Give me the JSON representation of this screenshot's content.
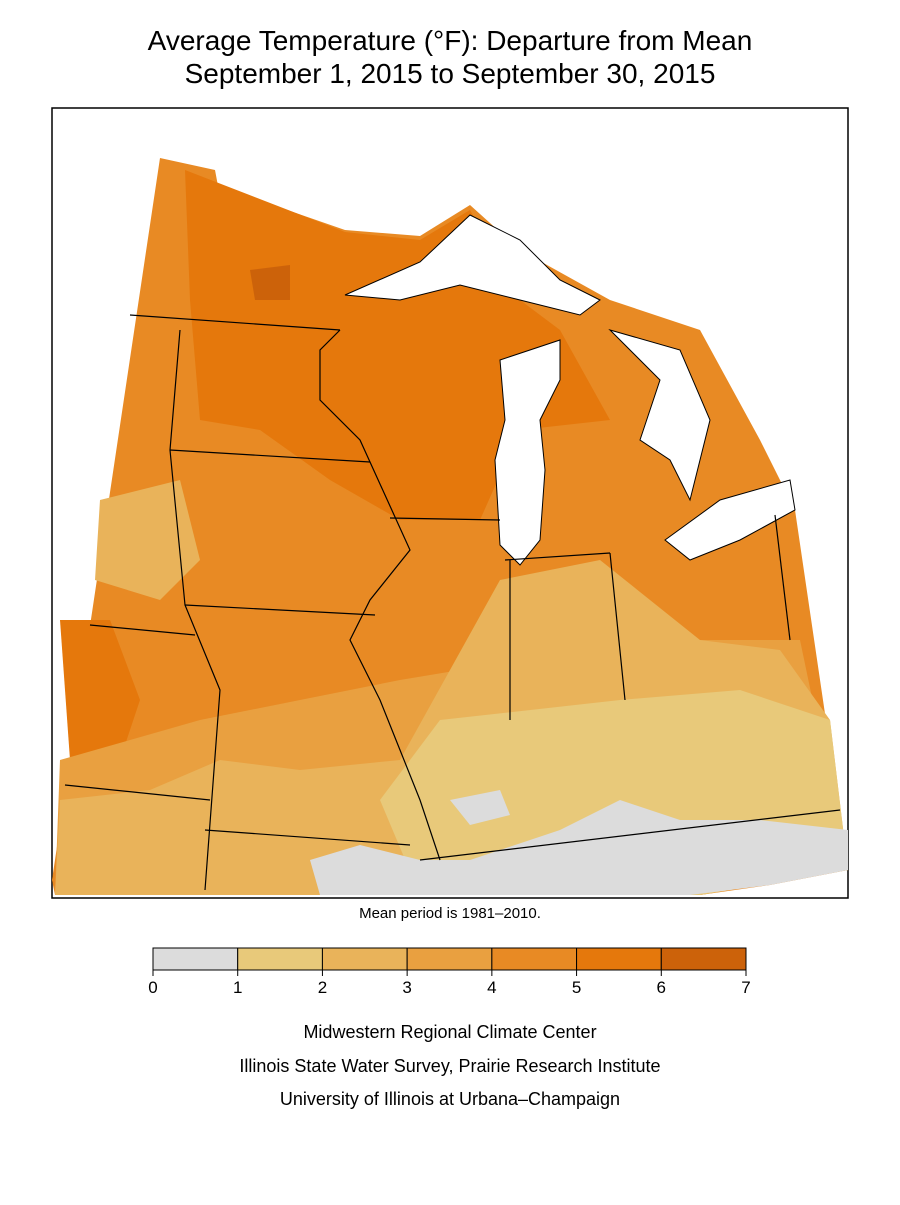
{
  "title": [
    "Average Temperature (°F): Departure from Mean",
    "September 1, 2015 to September 30, 2015"
  ],
  "note": "Mean period is 1981–2010.",
  "legend": {
    "ticks": [
      0,
      1,
      2,
      3,
      4,
      5,
      6,
      7
    ],
    "colors": [
      "#dcdcdc",
      "#e8c97a",
      "#e9b35a",
      "#e9a040",
      "#e88a24",
      "#e5780c",
      "#cc620a"
    ]
  },
  "credits": [
    "Midwestern Regional Climate Center",
    "Illinois State Water Survey, Prairie Research Institute",
    "University of Illinois at Urbana–Champaign"
  ]
}
